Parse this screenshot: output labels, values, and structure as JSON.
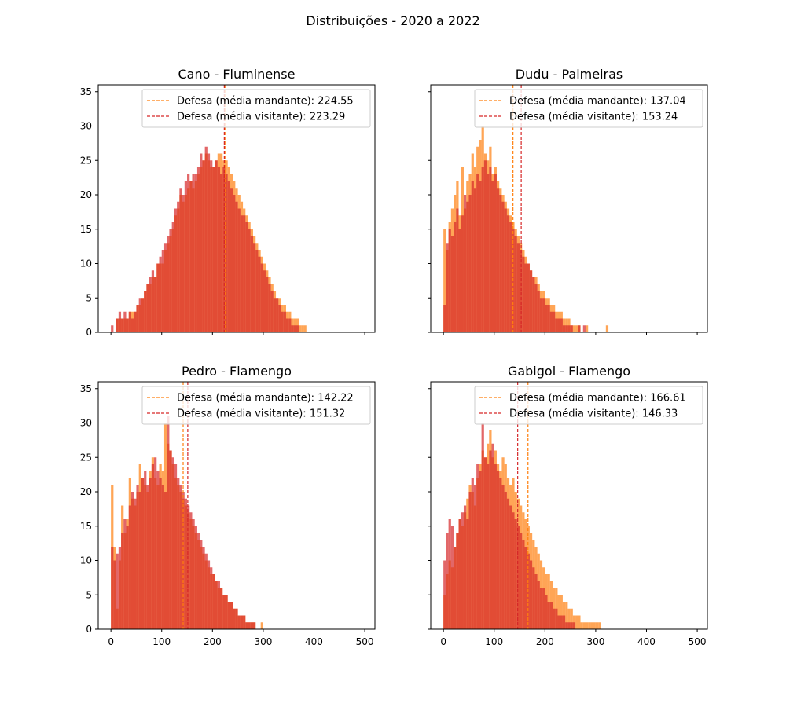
{
  "figure": {
    "title": "Distribuições - 2020 a 2022"
  },
  "chart_data": [
    {
      "type": "histogram",
      "title": "Cano - Fluminense",
      "xlim": [
        -25,
        520
      ],
      "ylim": [
        0,
        36
      ],
      "x_ticks": [
        0,
        100,
        200,
        300,
        400,
        500
      ],
      "y_ticks": [
        0,
        5,
        10,
        15,
        20,
        25,
        30,
        35
      ],
      "show_x_tick_labels": false,
      "show_y_tick_labels": true,
      "bin_start": 0,
      "bin_width": 5,
      "series": [
        {
          "name": "mandante",
          "color": "#ff7f0e",
          "values": [
            0,
            0,
            2,
            2,
            2,
            2,
            2,
            3,
            3,
            3,
            4,
            4,
            5,
            6,
            7,
            7,
            8,
            8,
            10,
            10,
            10,
            12,
            13,
            14,
            15,
            17,
            18,
            20,
            19,
            20,
            21,
            22,
            21,
            22,
            23,
            24,
            25,
            26,
            25,
            24,
            24,
            25,
            26,
            26,
            25,
            25,
            24,
            23,
            22,
            21,
            20,
            19,
            18,
            17,
            16,
            15,
            14,
            13,
            12,
            11,
            10,
            9,
            8,
            7,
            6,
            5,
            5,
            4,
            4,
            3,
            3,
            2,
            2,
            2,
            1,
            1,
            1,
            0,
            0,
            0
          ]
        },
        {
          "name": "visitante",
          "color": "#d62728",
          "values": [
            1,
            0,
            2,
            3,
            2,
            3,
            2,
            3,
            2,
            3,
            4,
            5,
            5,
            6,
            7,
            8,
            9,
            8,
            10,
            11,
            12,
            13,
            14,
            15,
            16,
            18,
            19,
            21,
            20,
            22,
            23,
            22,
            23,
            23,
            24,
            26,
            25,
            27,
            26,
            25,
            24,
            25,
            24,
            23,
            24,
            23,
            22,
            21,
            20,
            19,
            18,
            17,
            17,
            16,
            15,
            14,
            13,
            12,
            11,
            10,
            9,
            8,
            7,
            6,
            5,
            5,
            4,
            3,
            3,
            2,
            2,
            1,
            1,
            1,
            0,
            0,
            0,
            0,
            0,
            0
          ]
        }
      ],
      "mean_lines": [
        {
          "label": "Defesa (média mandante): 224.55",
          "x": 224.55,
          "color": "#ff7f0e"
        },
        {
          "label": "Defesa (média visitante): 223.29",
          "x": 223.29,
          "color": "#d62728"
        }
      ]
    },
    {
      "type": "histogram",
      "title": "Dudu - Palmeiras",
      "xlim": [
        -25,
        520
      ],
      "ylim": [
        0,
        36
      ],
      "x_ticks": [
        0,
        100,
        200,
        300,
        400,
        500
      ],
      "y_ticks": [
        0,
        5,
        10,
        15,
        20,
        25,
        30,
        35
      ],
      "show_x_tick_labels": false,
      "show_y_tick_labels": false,
      "bin_start": 0,
      "bin_width": 5,
      "series": [
        {
          "name": "mandante",
          "color": "#ff7f0e",
          "values": [
            15,
            12,
            16,
            18,
            20,
            22,
            17,
            24,
            18,
            22,
            23,
            26,
            24,
            27,
            28,
            30,
            26,
            25,
            27,
            23,
            24,
            22,
            21,
            20,
            19,
            18,
            17,
            16,
            15,
            14,
            13,
            12,
            11,
            10,
            9,
            8,
            8,
            7,
            6,
            6,
            5,
            5,
            4,
            4,
            3,
            3,
            3,
            2,
            2,
            2,
            1,
            1,
            1,
            1,
            0,
            0,
            1,
            0,
            0,
            0,
            0,
            0,
            0,
            0,
            1
          ]
        },
        {
          "name": "visitante",
          "color": "#d62728",
          "values": [
            4,
            13,
            15,
            14,
            16,
            18,
            15,
            17,
            20,
            19,
            20,
            22,
            21,
            23,
            22,
            24,
            25,
            23,
            24,
            22,
            23,
            21,
            20,
            19,
            18,
            17,
            16,
            15,
            14,
            13,
            12,
            11,
            10,
            10,
            9,
            8,
            7,
            6,
            5,
            5,
            4,
            4,
            3,
            3,
            2,
            2,
            2,
            1,
            1,
            1,
            1,
            0,
            0,
            1,
            0,
            1,
            0,
            0,
            0,
            0,
            0,
            0,
            0,
            0,
            0
          ]
        }
      ],
      "mean_lines": [
        {
          "label": "Defesa (média mandante): 137.04",
          "x": 137.04,
          "color": "#ff7f0e"
        },
        {
          "label": "Defesa (média visitante): 153.24",
          "x": 153.24,
          "color": "#d62728"
        }
      ]
    },
    {
      "type": "histogram",
      "title": "Pedro - Flamengo",
      "xlim": [
        -25,
        520
      ],
      "ylim": [
        0,
        36
      ],
      "x_ticks": [
        0,
        100,
        200,
        300,
        400,
        500
      ],
      "y_ticks": [
        0,
        5,
        10,
        15,
        20,
        25,
        30,
        35
      ],
      "show_x_tick_labels": true,
      "show_y_tick_labels": true,
      "bin_start": 0,
      "bin_width": 5,
      "series": [
        {
          "name": "mandante",
          "color": "#ff7f0e",
          "values": [
            21,
            12,
            3,
            10,
            18,
            14,
            16,
            22,
            19,
            18,
            20,
            24,
            22,
            21,
            20,
            23,
            25,
            22,
            21,
            24,
            23,
            30,
            27,
            26,
            24,
            22,
            21,
            20,
            19,
            18,
            17,
            16,
            15,
            14,
            13,
            12,
            11,
            10,
            9,
            8,
            8,
            7,
            6,
            6,
            5,
            5,
            4,
            4,
            3,
            3,
            2,
            2,
            2,
            1,
            1,
            1,
            1,
            0,
            0,
            1,
            0,
            0,
            0,
            0,
            0,
            0,
            0,
            0,
            0,
            0,
            0,
            0,
            0,
            0,
            0,
            0,
            0,
            0,
            0,
            0,
            0,
            0,
            0,
            0,
            0,
            0,
            0,
            0,
            0,
            0,
            0
          ]
        },
        {
          "name": "visitante",
          "color": "#d62728",
          "values": [
            12,
            10,
            11,
            12,
            14,
            16,
            15,
            18,
            20,
            19,
            21,
            20,
            22,
            23,
            21,
            22,
            24,
            25,
            23,
            22,
            21,
            20,
            31,
            26,
            25,
            24,
            22,
            21,
            20,
            19,
            18,
            17,
            16,
            15,
            14,
            13,
            12,
            11,
            10,
            9,
            8,
            7,
            7,
            6,
            5,
            5,
            4,
            4,
            3,
            3,
            2,
            2,
            2,
            1,
            1,
            1,
            1,
            0,
            0,
            0,
            0,
            0,
            0,
            0,
            0,
            0,
            0,
            0,
            0,
            0,
            0,
            0,
            0,
            0,
            0,
            0,
            0,
            0,
            0,
            0,
            0,
            0,
            0,
            0,
            0,
            0,
            0,
            0,
            0,
            0,
            0
          ]
        }
      ],
      "mean_lines": [
        {
          "label": "Defesa (média mandante): 142.22",
          "x": 142.22,
          "color": "#ff7f0e"
        },
        {
          "label": "Defesa (média visitante): 151.32",
          "x": 151.32,
          "color": "#d62728"
        }
      ]
    },
    {
      "type": "histogram",
      "title": "Gabigol - Flamengo",
      "xlim": [
        -25,
        520
      ],
      "ylim": [
        0,
        36
      ],
      "x_ticks": [
        0,
        100,
        200,
        300,
        400,
        500
      ],
      "y_ticks": [
        0,
        5,
        10,
        15,
        20,
        25,
        30,
        35
      ],
      "show_x_tick_labels": true,
      "show_y_tick_labels": false,
      "bin_start": 0,
      "bin_width": 5,
      "series": [
        {
          "name": "mandante",
          "color": "#ff7f0e",
          "values": [
            5,
            8,
            10,
            9,
            12,
            14,
            16,
            15,
            17,
            19,
            21,
            20,
            18,
            22,
            24,
            26,
            25,
            27,
            29,
            25,
            26,
            24,
            23,
            25,
            24,
            22,
            21,
            22,
            20,
            19,
            18,
            17,
            16,
            15,
            14,
            13,
            12,
            11,
            10,
            9,
            8,
            8,
            7,
            6,
            6,
            5,
            5,
            4,
            4,
            3,
            3,
            2,
            2,
            2,
            1,
            1,
            1,
            1,
            1,
            1,
            1,
            1,
            0,
            0,
            0,
            0,
            0,
            0,
            0,
            0,
            0,
            0,
            0,
            0,
            0,
            0,
            0,
            0,
            0,
            0,
            0,
            0,
            0,
            0,
            0,
            0,
            0,
            0,
            0,
            0,
            0
          ]
        },
        {
          "name": "visitante",
          "color": "#d62728",
          "values": [
            10,
            14,
            16,
            15,
            12,
            14,
            16,
            17,
            18,
            16,
            20,
            22,
            21,
            24,
            23,
            30,
            25,
            24,
            26,
            27,
            24,
            23,
            22,
            21,
            20,
            19,
            18,
            17,
            16,
            15,
            14,
            13,
            12,
            11,
            10,
            9,
            8,
            7,
            6,
            6,
            5,
            4,
            4,
            3,
            3,
            2,
            2,
            2,
            1,
            1,
            1,
            1,
            0,
            0,
            0,
            0,
            0,
            0,
            0,
            0,
            0,
            0,
            0,
            0,
            0,
            0,
            0,
            0,
            0,
            0,
            0,
            0,
            0,
            0,
            0,
            0,
            0,
            0,
            0,
            0,
            0,
            0,
            0,
            0,
            0,
            0,
            0,
            0,
            0,
            0,
            0
          ]
        }
      ],
      "mean_lines": [
        {
          "label": "Defesa (média mandante): 166.61",
          "x": 166.61,
          "color": "#ff7f0e"
        },
        {
          "label": "Defesa (média visitante): 146.33",
          "x": 146.33,
          "color": "#d62728"
        }
      ]
    }
  ]
}
